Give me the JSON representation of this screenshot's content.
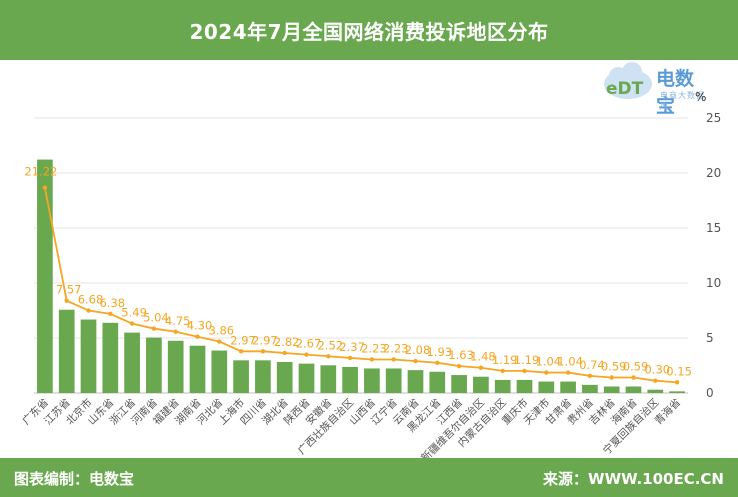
{
  "header": {
    "title": "2024年7月全国网络消费投诉地区分布"
  },
  "logo": {
    "name": "电数宝",
    "subtitle": "电商大数据库",
    "mark": "eDT"
  },
  "unit": "%",
  "footer": {
    "left": "图表编制：电数宝",
    "right": "来源：WWW.100EC.CN"
  },
  "colors": {
    "header": "#6aa84f",
    "bar": "#6aa84f",
    "line": "#f5a623",
    "label": "#f5a623"
  },
  "chart_data": {
    "type": "bar",
    "categories": [
      "广东省",
      "江苏省",
      "北京市",
      "山东省",
      "浙江省",
      "河南省",
      "福建省",
      "湖南省",
      "河北省",
      "上海市",
      "四川省",
      "湖北省",
      "陕西省",
      "安徽省",
      "广西壮族自治区",
      "山西省",
      "辽宁省",
      "云南省",
      "黑龙江省",
      "江西省",
      "新疆维吾尔自治区",
      "内蒙古自治区",
      "重庆市",
      "天津市",
      "甘肃省",
      "贵州省",
      "吉林省",
      "海南省",
      "宁夏回族自治区",
      "青海省"
    ],
    "values": [
      21.22,
      7.57,
      6.68,
      6.38,
      5.49,
      5.04,
      4.75,
      4.3,
      3.86,
      2.97,
      2.97,
      2.82,
      2.67,
      2.52,
      2.37,
      2.23,
      2.23,
      2.08,
      1.93,
      1.63,
      1.48,
      1.19,
      1.19,
      1.04,
      1.04,
      0.74,
      0.59,
      0.59,
      0.3,
      0.15
    ],
    "value_labels": [
      "21.22",
      "7.57",
      "6.68",
      "6.38",
      "5.49",
      "5.04",
      "4.75",
      "4.30",
      "3.86",
      "2.97",
      "2.97",
      "2.82",
      "2.67",
      "2.52",
      "2.37",
      "2.23",
      "2.23",
      "2.08",
      "1.93",
      "1.63",
      "1.48",
      "1.19",
      "1.19",
      "1.04",
      "1.04",
      "0.74",
      "0.59",
      "0.59",
      "0.30",
      "0.15"
    ],
    "y_ticks": [
      "0",
      "5",
      "10",
      "15",
      "20",
      "25"
    ],
    "ylim": [
      0,
      25
    ],
    "y_axis_side": "right",
    "grid": true,
    "title": "2024年7月全国网络消费投诉地区分布"
  }
}
